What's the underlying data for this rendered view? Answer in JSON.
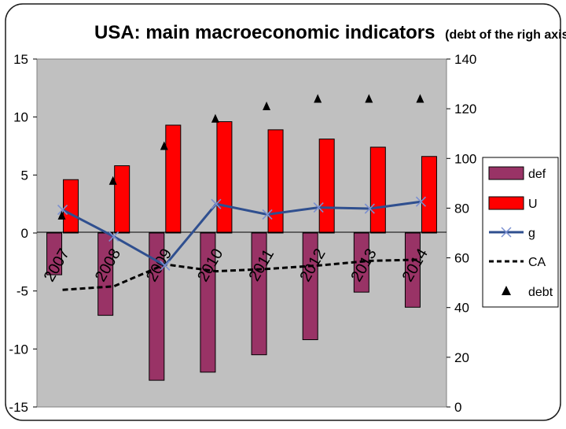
{
  "chart_data": {
    "type": "bar",
    "title": "USA: main macroeconomic indicators",
    "subtitle": "(debt of the righ axis)",
    "categories": [
      "2007",
      "2008",
      "2009",
      "2010",
      "2011",
      "2012",
      "2013",
      "2014"
    ],
    "left_axis": {
      "ylim": [
        -15,
        15
      ],
      "ticks": [
        "15",
        "10",
        "5",
        "0",
        "-5",
        "-10",
        "-15"
      ]
    },
    "right_axis": {
      "ylim": [
        0,
        140
      ],
      "ticks": [
        "140",
        "120",
        "100",
        "80",
        "60",
        "40",
        "20",
        "0"
      ]
    },
    "series": [
      {
        "name": "def",
        "type": "bar",
        "axis": "left",
        "color": "#993366",
        "values": [
          -3.6,
          -7.1,
          -12.7,
          -12.0,
          -10.5,
          -9.2,
          -5.1,
          -6.4
        ]
      },
      {
        "name": "U",
        "type": "bar",
        "axis": "left",
        "color": "#ff0000",
        "values": [
          4.6,
          5.8,
          9.3,
          9.6,
          8.9,
          8.1,
          7.4,
          6.6
        ]
      },
      {
        "name": "g",
        "type": "line",
        "axis": "left",
        "color": "#2f4f8f",
        "values": [
          2.0,
          -0.3,
          -2.8,
          2.5,
          1.6,
          2.2,
          2.1,
          2.7
        ]
      },
      {
        "name": "CA",
        "type": "dashed-line",
        "axis": "left",
        "color": "#000000",
        "values": [
          -4.9,
          -4.6,
          -2.7,
          -3.3,
          -3.1,
          -2.8,
          -2.4,
          -2.3
        ]
      },
      {
        "name": "debt",
        "type": "marker",
        "axis": "right",
        "color": "#000000",
        "values": [
          77,
          91,
          105,
          116,
          121,
          124,
          124,
          124
        ]
      }
    ],
    "legend_position": "right",
    "grid": false
  }
}
